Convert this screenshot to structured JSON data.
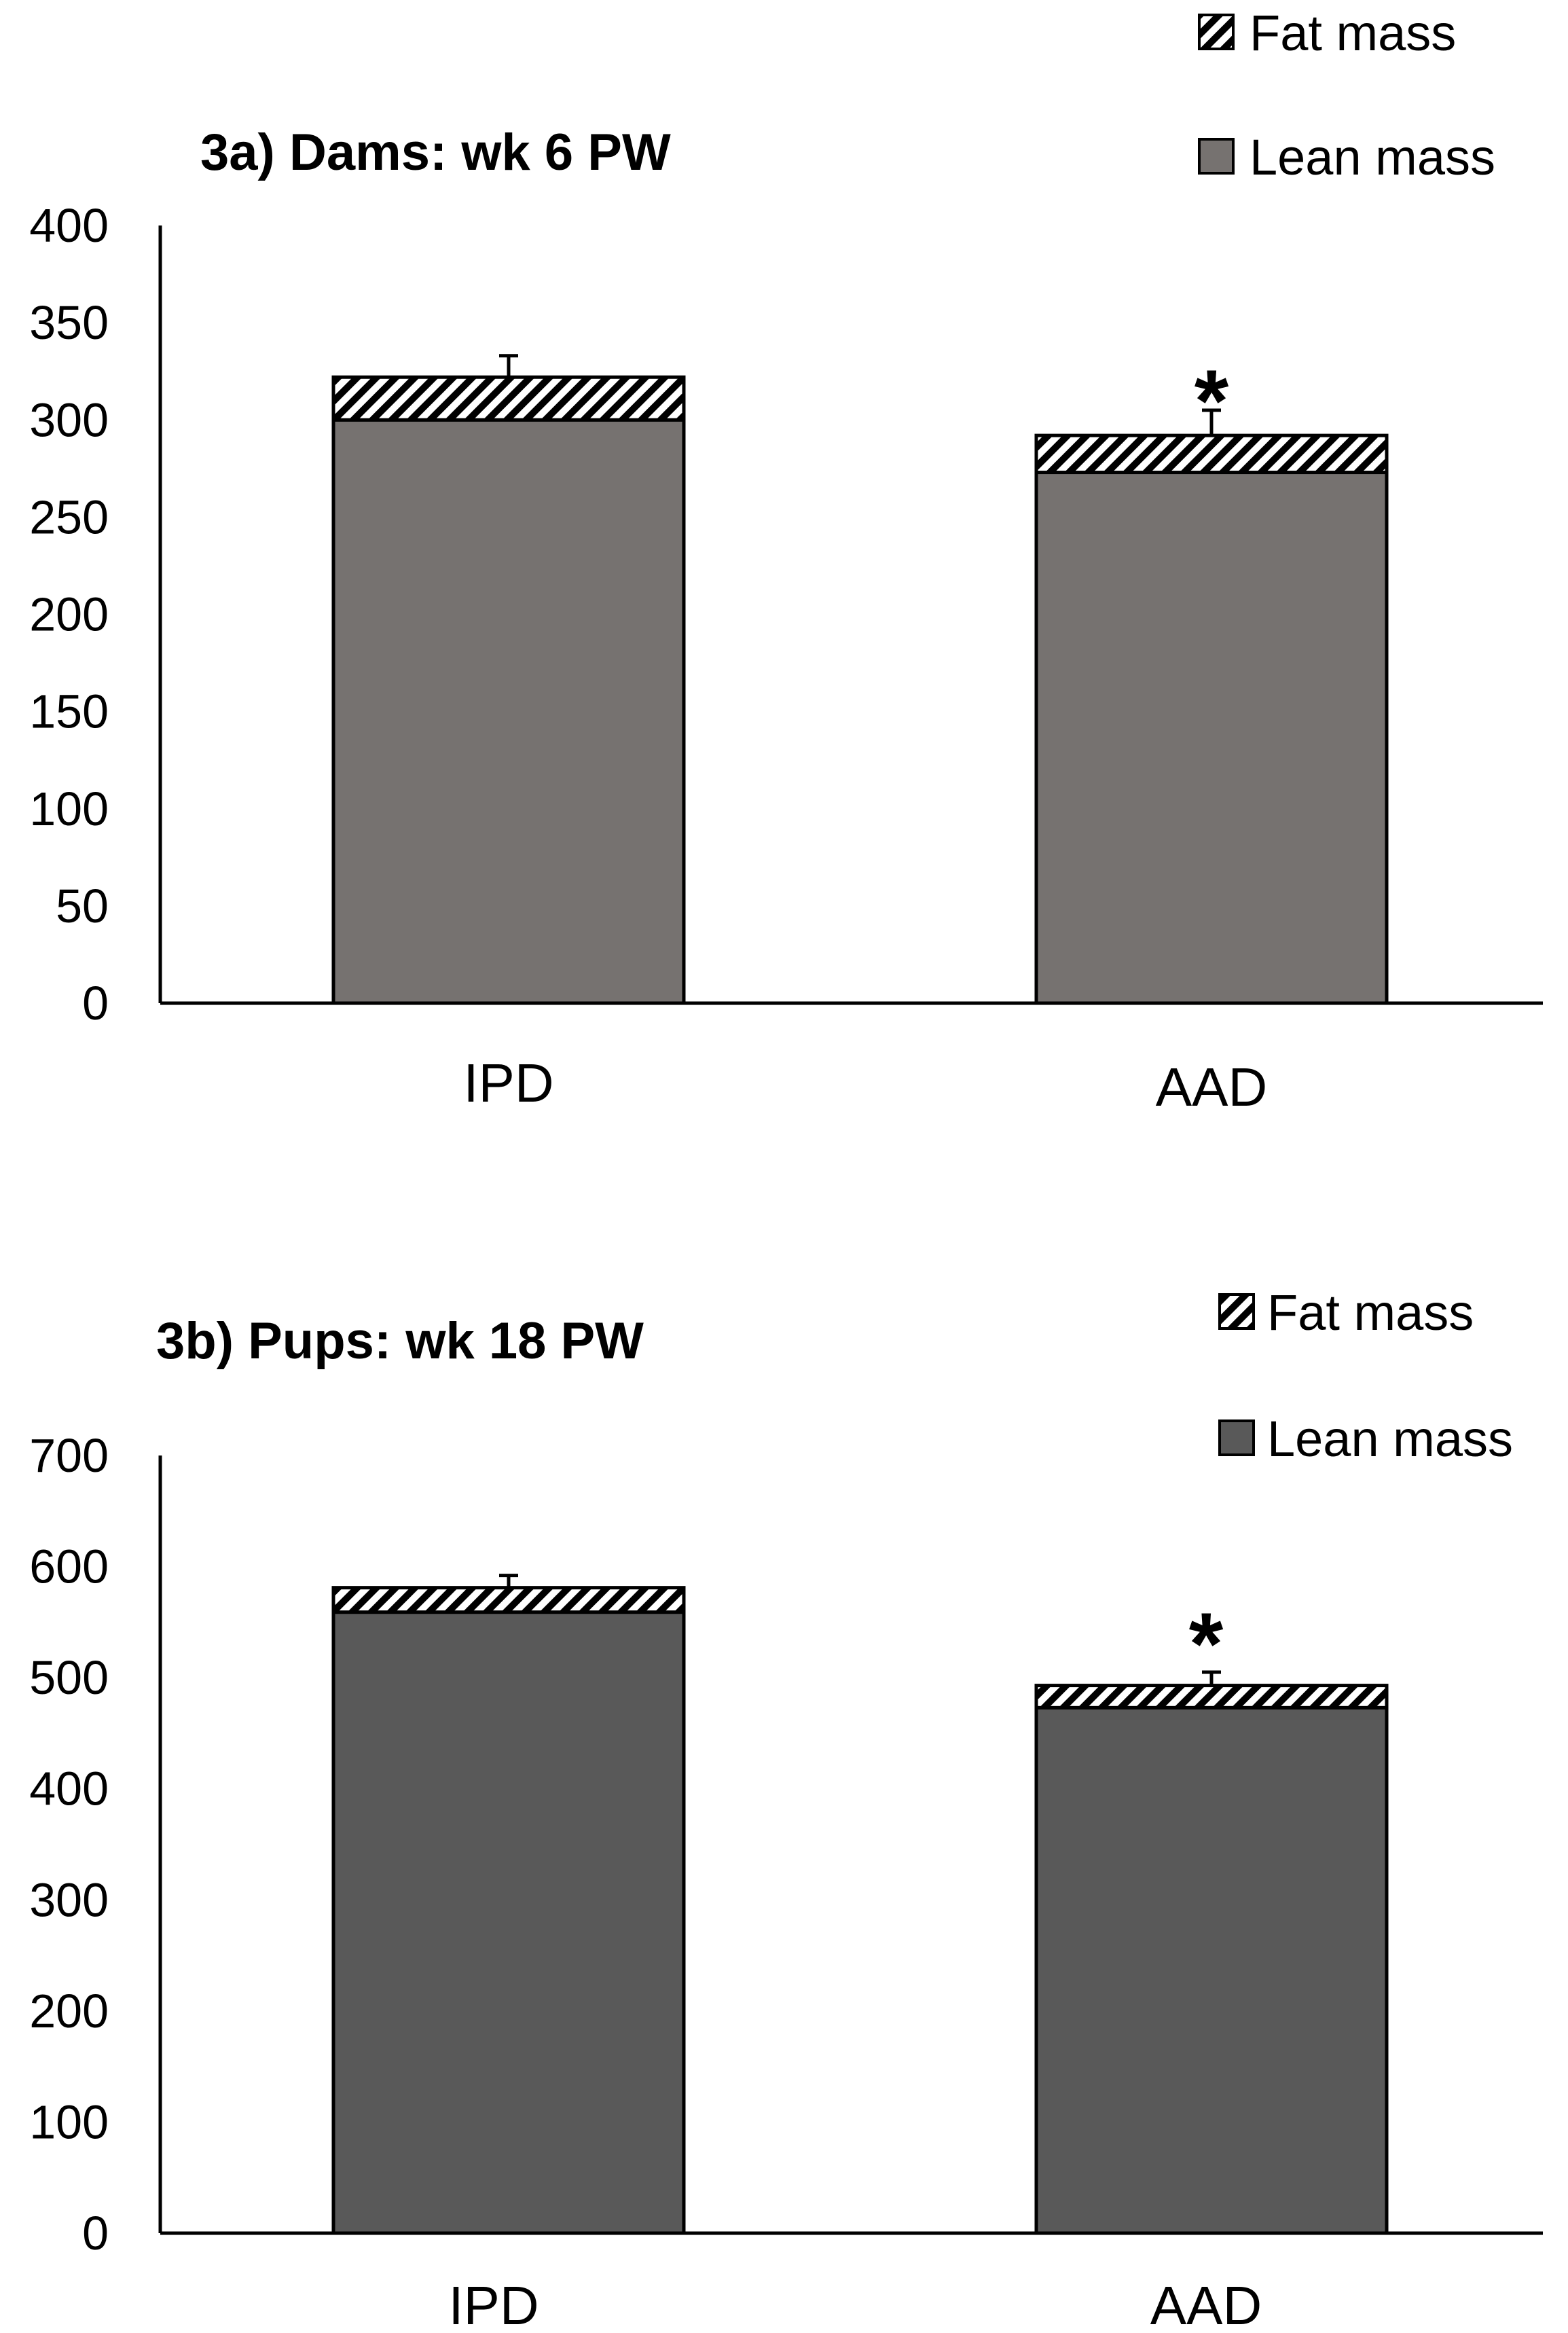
{
  "chart_data": [
    {
      "type": "bar",
      "stacked": true,
      "title": "3a) Dams: wk 6 PW",
      "categories": [
        "IPD",
        "AAD"
      ],
      "ylim": [
        0,
        400
      ],
      "yticks": [
        0,
        50,
        100,
        150,
        200,
        250,
        300,
        350,
        400
      ],
      "series": [
        {
          "name": "Lean mass",
          "values": [
            300,
            273
          ],
          "fill": "#767270"
        },
        {
          "name": "Fat mass",
          "values": [
            22,
            19
          ],
          "pattern": "diagonal-hatch"
        }
      ],
      "error_bars": [
        11,
        13
      ],
      "annotations": [
        {
          "category": "AAD",
          "text": "*"
        }
      ],
      "legend": [
        "Fat mass",
        "Lean mass"
      ],
      "legend_position": "top-right",
      "grid": false
    },
    {
      "type": "bar",
      "stacked": true,
      "title": "3b) Pups: wk 18 PW",
      "categories": [
        "IPD",
        "AAD"
      ],
      "ylim": [
        0,
        700
      ],
      "yticks": [
        0,
        100,
        200,
        300,
        400,
        500,
        600,
        700
      ],
      "series": [
        {
          "name": "Lean mass",
          "values": [
            559,
            473
          ],
          "fill": "#595959"
        },
        {
          "name": "Fat mass",
          "values": [
            22,
            20
          ],
          "pattern": "diagonal-hatch"
        }
      ],
      "error_bars": [
        11,
        12
      ],
      "annotations": [
        {
          "category": "AAD",
          "text": "*"
        }
      ],
      "legend": [
        "Fat mass",
        "Lean mass"
      ],
      "legend_position": "top-right",
      "grid": false
    }
  ]
}
